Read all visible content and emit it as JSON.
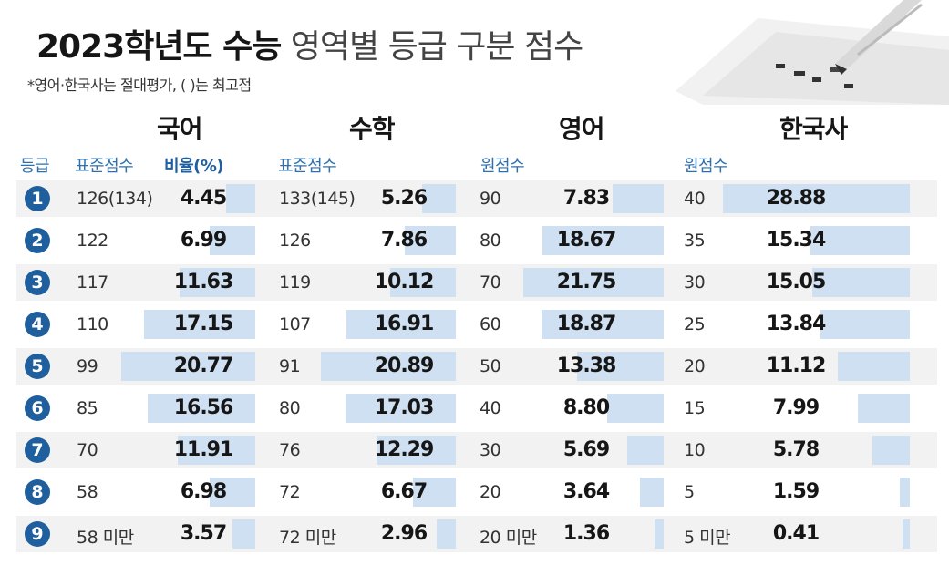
{
  "title": {
    "bold": "2023학년도 수능",
    "light": "영역별 등급 구분 점수"
  },
  "subtitle": "*영어·한국사는 절대평가, ( )는 최고점",
  "columns": {
    "korean": "국어",
    "math": "수학",
    "english": "영어",
    "history": "한국사"
  },
  "subheaders": {
    "grade": "등급",
    "std_score": "표준점수",
    "ratio": "비율(%)",
    "std_score2": "표준점수",
    "raw_score": "원점수",
    "raw_score2": "원점수"
  },
  "colors": {
    "bar": "#cfe0f2",
    "badge": "#205f9e",
    "subhead": "#2f6fae"
  },
  "chart_data": {
    "type": "table",
    "title": "2023학년도 수능 영역별 등급 구분 점수",
    "grades": [
      "1",
      "2",
      "3",
      "4",
      "5",
      "6",
      "7",
      "8",
      "9"
    ],
    "series": [
      {
        "name": "국어",
        "scores": [
          "126(134)",
          "122",
          "117",
          "110",
          "99",
          "85",
          "70",
          "58",
          "58 미만"
        ],
        "values": [
          4.45,
          6.99,
          11.63,
          17.15,
          20.77,
          16.56,
          11.91,
          6.98,
          3.57
        ],
        "labels": [
          "4.45",
          "6.99",
          "11.63",
          "17.15",
          "20.77",
          "16.56",
          "11.91",
          "6.98",
          "3.57"
        ]
      },
      {
        "name": "수학",
        "scores": [
          "133(145)",
          "126",
          "119",
          "107",
          "91",
          "80",
          "76",
          "72",
          "72 미만"
        ],
        "values": [
          5.26,
          7.86,
          10.12,
          16.91,
          20.89,
          17.03,
          12.29,
          6.67,
          2.96
        ],
        "labels": [
          "5.26",
          "7.86",
          "10.12",
          "16.91",
          "20.89",
          "17.03",
          "12.29",
          "6.67",
          "2.96"
        ]
      },
      {
        "name": "영어",
        "scores": [
          "90",
          "80",
          "70",
          "60",
          "50",
          "40",
          "30",
          "20",
          "20 미만"
        ],
        "values": [
          7.83,
          18.67,
          21.75,
          18.87,
          13.38,
          8.8,
          5.69,
          3.64,
          1.36
        ],
        "labels": [
          "7.83",
          "18.67",
          "21.75",
          "18.87",
          "13.38",
          "8.80",
          "5.69",
          "3.64",
          "1.36"
        ]
      },
      {
        "name": "한국사",
        "scores": [
          "40",
          "35",
          "30",
          "25",
          "20",
          "15",
          "10",
          "5",
          "5 미만"
        ],
        "values": [
          28.88,
          15.34,
          15.05,
          13.84,
          11.12,
          7.99,
          5.78,
          1.59,
          0.41
        ],
        "labels": [
          "28.88",
          "15.34",
          "15.05",
          "13.84",
          "11.12",
          "7.99",
          "5.78",
          "1.59",
          "0.41"
        ]
      }
    ]
  }
}
